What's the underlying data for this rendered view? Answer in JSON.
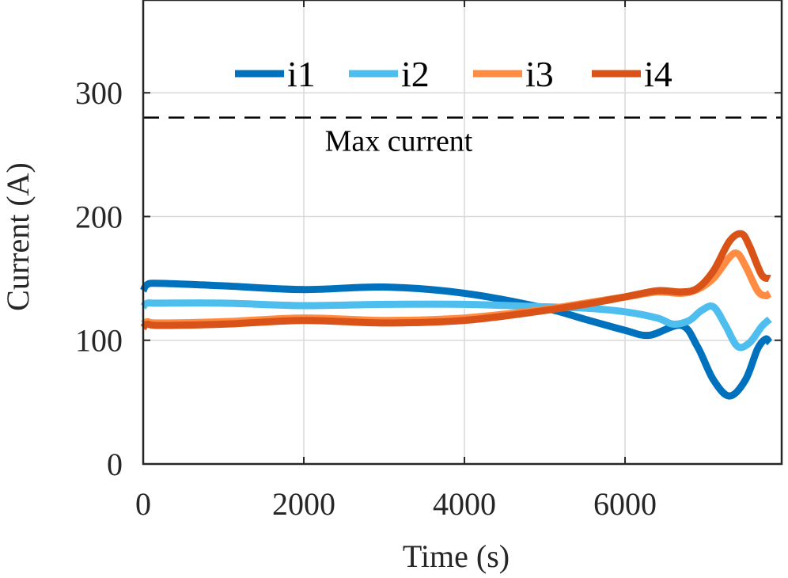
{
  "chart_data": {
    "type": "line",
    "xlabel": "Time (s)",
    "ylabel": "Current (A)",
    "xlim": [
      0,
      7950
    ],
    "ylim": [
      0,
      375
    ],
    "x_ticks": [
      "0",
      "2000",
      "4000",
      "6000"
    ],
    "x_tick_values": [
      0,
      2000,
      4000,
      6000
    ],
    "y_ticks": [
      "0",
      "100",
      "200",
      "300"
    ],
    "y_tick_values": [
      0,
      100,
      200,
      300
    ],
    "grid": true,
    "legend_placement": "top",
    "threshold": {
      "value": 280,
      "label": "Max current",
      "style": "dashed",
      "color": "#000000"
    },
    "series": [
      {
        "name": "i1",
        "color": "#0072BD",
        "points": [
          [
            0,
            140
          ],
          [
            50,
            145
          ],
          [
            200,
            146
          ],
          [
            1000,
            144
          ],
          [
            2000,
            141
          ],
          [
            3000,
            143
          ],
          [
            4000,
            138
          ],
          [
            5000,
            126
          ],
          [
            5500,
            117
          ],
          [
            6000,
            108
          ],
          [
            6300,
            104
          ],
          [
            6700,
            112
          ],
          [
            6900,
            95
          ],
          [
            7100,
            68
          ],
          [
            7300,
            55
          ],
          [
            7500,
            68
          ],
          [
            7650,
            93
          ],
          [
            7750,
            101
          ],
          [
            7800,
            98
          ]
        ]
      },
      {
        "name": "i2",
        "color": "#4DBEEE",
        "points": [
          [
            0,
            127
          ],
          [
            50,
            130
          ],
          [
            200,
            130
          ],
          [
            1000,
            130
          ],
          [
            2000,
            128
          ],
          [
            3000,
            129
          ],
          [
            4000,
            129
          ],
          [
            5000,
            127
          ],
          [
            5500,
            126
          ],
          [
            6000,
            123
          ],
          [
            6400,
            118
          ],
          [
            6600,
            113
          ],
          [
            6800,
            116
          ],
          [
            6950,
            124
          ],
          [
            7100,
            127
          ],
          [
            7250,
            112
          ],
          [
            7400,
            95
          ],
          [
            7550,
            98
          ],
          [
            7700,
            111
          ],
          [
            7800,
            117
          ]
        ]
      },
      {
        "name": "i3",
        "color": "#FF8C42",
        "points": [
          [
            0,
            113
          ],
          [
            50,
            115
          ],
          [
            200,
            114
          ],
          [
            1000,
            115
          ],
          [
            2000,
            118
          ],
          [
            3000,
            116
          ],
          [
            4000,
            118
          ],
          [
            5000,
            125
          ],
          [
            5500,
            130
          ],
          [
            6000,
            135
          ],
          [
            6400,
            139
          ],
          [
            6700,
            138
          ],
          [
            6900,
            141
          ],
          [
            7100,
            150
          ],
          [
            7300,
            167
          ],
          [
            7400,
            170
          ],
          [
            7500,
            160
          ],
          [
            7650,
            140
          ],
          [
            7750,
            136
          ],
          [
            7800,
            138
          ]
        ]
      },
      {
        "name": "i4",
        "color": "#D95319",
        "points": [
          [
            0,
            110
          ],
          [
            50,
            113
          ],
          [
            200,
            112
          ],
          [
            1000,
            113
          ],
          [
            2000,
            116
          ],
          [
            3000,
            114
          ],
          [
            4000,
            116
          ],
          [
            5000,
            124
          ],
          [
            5500,
            129
          ],
          [
            6000,
            135
          ],
          [
            6400,
            140
          ],
          [
            6700,
            139
          ],
          [
            6900,
            142
          ],
          [
            7100,
            156
          ],
          [
            7300,
            180
          ],
          [
            7450,
            186
          ],
          [
            7550,
            176
          ],
          [
            7700,
            153
          ],
          [
            7800,
            150
          ]
        ]
      }
    ]
  }
}
